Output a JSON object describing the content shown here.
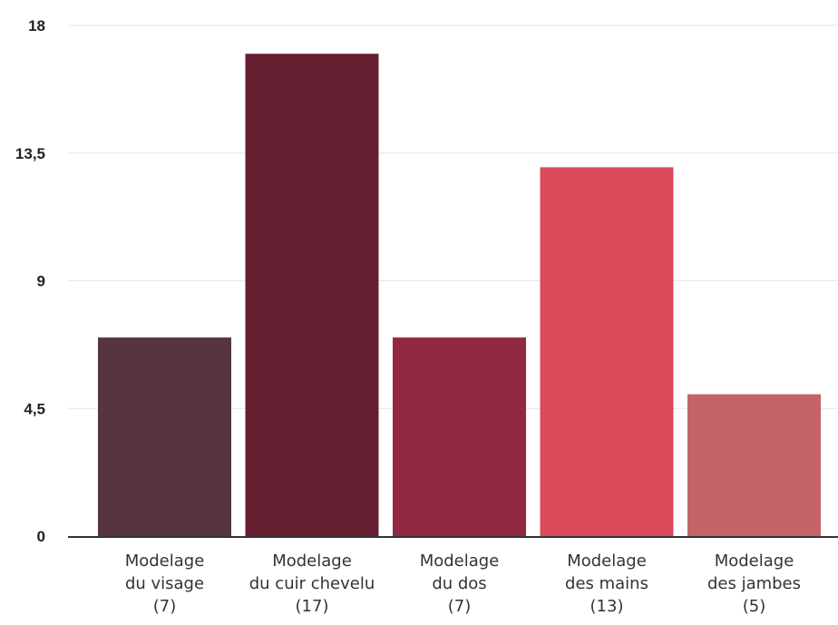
{
  "chart_data": {
    "type": "bar",
    "categories": [
      [
        "Modelage",
        "du visage",
        "(7)"
      ],
      [
        "Modelage",
        "du cuir chevelu",
        "(17)"
      ],
      [
        "Modelage",
        "du dos",
        "(7)"
      ],
      [
        "Modelage",
        "des mains",
        "(13)"
      ],
      [
        "Modelage",
        "des jambes",
        "(5)"
      ]
    ],
    "values": [
      7,
      17,
      7,
      13,
      5
    ],
    "colors": [
      "#563442",
      "#651f31",
      "#922943",
      "#da4a5b",
      "#c56466"
    ],
    "yticks": [
      "0",
      "4,5",
      "9",
      "13,5",
      "18"
    ],
    "ylim": [
      0,
      18
    ],
    "grid": true,
    "legend": "none"
  }
}
